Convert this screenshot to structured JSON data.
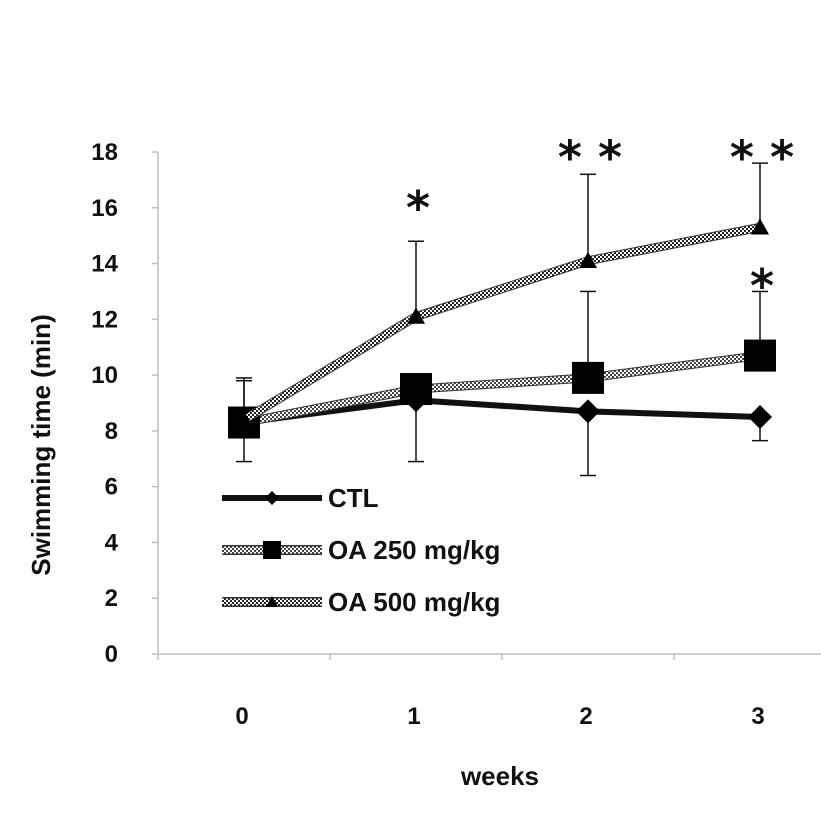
{
  "chart_data": {
    "type": "line",
    "xlabel": "weeks",
    "ylabel": "Swimming time (min)",
    "categories": [
      "0",
      "1",
      "2",
      "3"
    ],
    "ylim": [
      0,
      18
    ],
    "yticks": [
      "0",
      "2",
      "4",
      "6",
      "8",
      "10",
      "12",
      "14",
      "16",
      "18"
    ],
    "grid": false,
    "legend_position": "bottom-left",
    "series": [
      {
        "name": "CTL",
        "values": [
          8.3,
          9.1,
          8.7,
          8.5
        ],
        "error_upper": [
          1.6,
          0,
          0,
          0
        ],
        "error_lower": [
          1.4,
          2.2,
          2.3,
          0.85
        ],
        "marker": "diamond",
        "style": "thick-solid",
        "color": "#111111"
      },
      {
        "name": "OA 250 mg/kg",
        "values": [
          8.3,
          9.5,
          9.9,
          10.7
        ],
        "error_upper": [
          0,
          0,
          3.1,
          2.3
        ],
        "error_lower": [
          0,
          0,
          0,
          0
        ],
        "marker": "square",
        "style": "dotted",
        "color": "#111111"
      },
      {
        "name": "OA 500 mg/kg",
        "values": [
          8.4,
          12.1,
          14.1,
          15.3
        ],
        "error_upper": [
          1.4,
          2.7,
          3.1,
          2.3
        ],
        "error_lower": [
          0,
          0,
          0,
          0
        ],
        "marker": "triangle",
        "style": "hatched",
        "color": "#111111"
      }
    ],
    "annotations": [
      {
        "x": "1",
        "text": "*",
        "level": 16.5
      },
      {
        "x": "2",
        "text": "* *",
        "level": 18.3
      },
      {
        "x": "3",
        "text": "* *",
        "level": 18.3
      },
      {
        "x": "3",
        "text": "*",
        "level": 13.7
      }
    ]
  }
}
